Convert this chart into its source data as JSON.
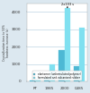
{
  "categories": [
    "RT",
    "1985",
    "2000",
    "0485"
  ],
  "series1_label": "elastomer (unformulated polymer)",
  "series2_label": "formulated and vulcanized rubber",
  "series1_values": [
    30,
    200,
    1800,
    900
  ],
  "series2_values": [
    150,
    1000,
    4200,
    3100
  ],
  "series1_color": "#4db8d4",
  "series2_color": "#80e0f0",
  "ylim": [
    0,
    4500
  ],
  "yticks": [
    0,
    1000,
    2000,
    3000,
    4000
  ],
  "annotation_text": "2x103 s",
  "bg_color": "#f5f5f5",
  "plot_bg": "#ffffff",
  "grid_color": "#c8dce8",
  "bar_width": 0.38,
  "fig_bg": "#dce8f0"
}
